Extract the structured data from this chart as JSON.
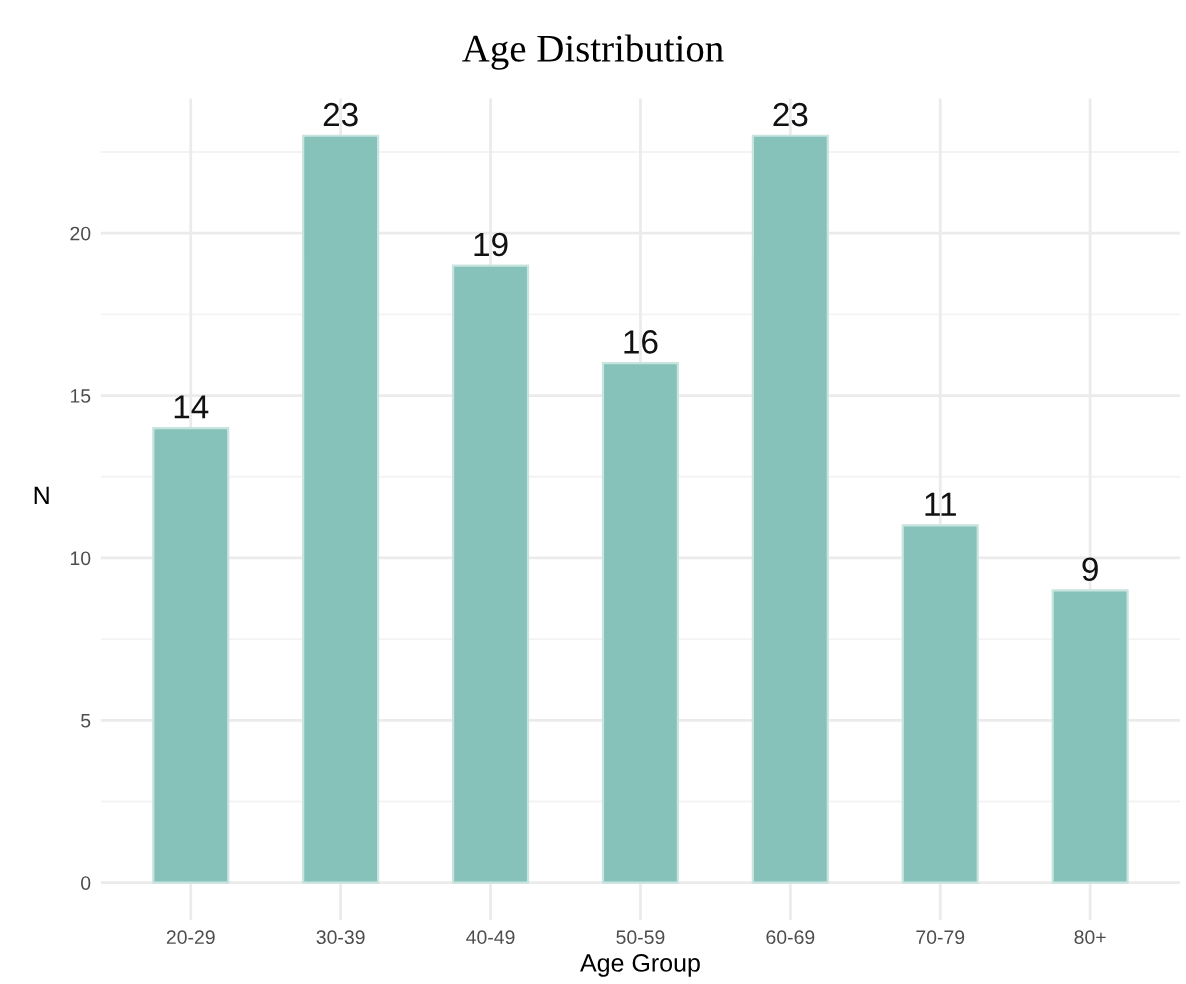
{
  "chart_data": {
    "type": "bar",
    "title": "Age Distribution",
    "xlabel": "Age Group",
    "ylabel": "N",
    "categories": [
      "20-29",
      "30-39",
      "40-49",
      "50-59",
      "60-69",
      "70-79",
      "80+"
    ],
    "values": [
      14,
      23,
      19,
      16,
      23,
      11,
      9
    ],
    "color": "#86c2b9",
    "ylim": [
      -1.15,
      24.15
    ],
    "yticks": [
      0,
      5,
      10,
      15,
      20
    ],
    "grid": true,
    "data_labels": true
  }
}
